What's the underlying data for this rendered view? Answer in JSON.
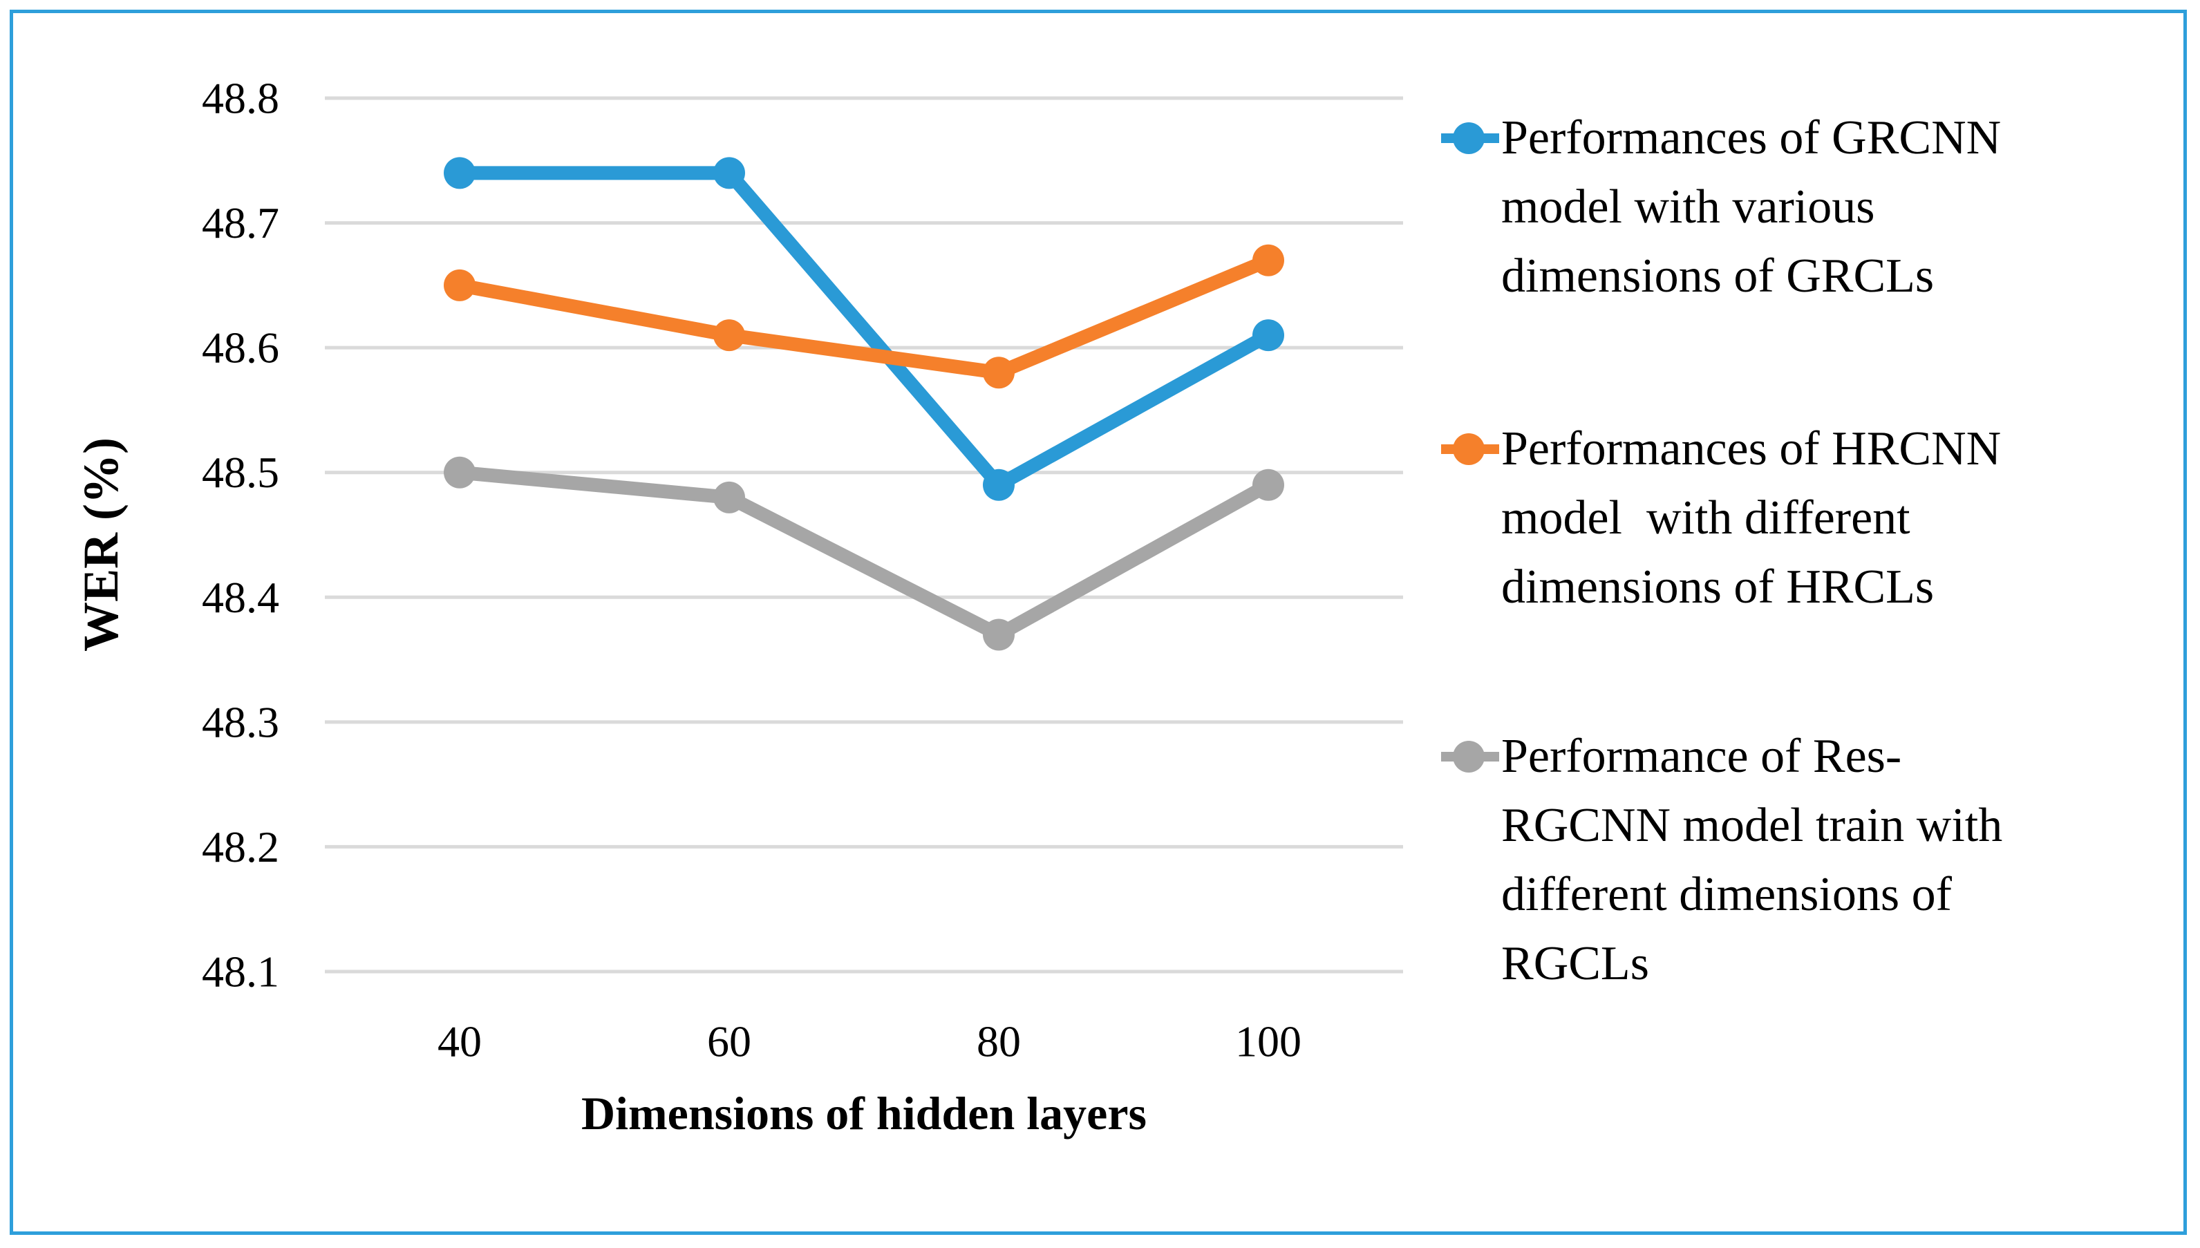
{
  "figure": {
    "background": "#FFFFFF",
    "border_color": "#2E9FDB"
  },
  "chart_data": {
    "type": "line",
    "categories": [
      40,
      60,
      80,
      100
    ],
    "series": [
      {
        "name": "Performances of GRCNN model with various dimensions of GRCLs",
        "color": "#2A9AD6",
        "values": [
          48.74,
          48.74,
          48.49,
          48.61
        ]
      },
      {
        "name": "Performances of HRCNN model  with different dimensions of HRCLs",
        "color": "#F5802B",
        "values": [
          48.65,
          48.61,
          48.58,
          48.67
        ]
      },
      {
        "name": "Performance of Res-RGCNN model train with different dimensions of RGCLs",
        "color": "#A6A6A6",
        "values": [
          48.5,
          48.48,
          48.37,
          48.49
        ]
      }
    ],
    "title": "",
    "xlabel": "Dimensions of hidden layers",
    "ylabel": "WER (%)",
    "ylim": [
      48.1,
      48.8
    ],
    "ytick_step": 0.1,
    "grid": "horizontal-only",
    "gridline_color": "#DADADA",
    "legend_position": "right"
  },
  "axes": {
    "x_title": "Dimensions of hidden layers",
    "y_title": "WER (%)",
    "x_ticks": [
      "40",
      "60",
      "80",
      "100"
    ],
    "y_ticks": [
      "48.1",
      "48.2",
      "48.3",
      "48.4",
      "48.5",
      "48.6",
      "48.7",
      "48.8"
    ],
    "tick_color": "#000000"
  },
  "legend": {
    "entries": [
      {
        "marker_color": "#2A9AD6",
        "marker_shape": "line-with-circle",
        "lines": [
          "Performances of GRCNN",
          "model with various",
          "dimensions of GRCLs"
        ]
      },
      {
        "marker_color": "#F5802B",
        "marker_shape": "line-with-circle",
        "lines": [
          "Performances of HRCNN",
          "model  with different",
          "dimensions of HRCLs"
        ]
      },
      {
        "marker_color": "#A6A6A6",
        "marker_shape": "line-with-circle",
        "lines": [
          "Performance of Res-",
          "RGCNN model train with",
          "different dimensions of",
          "RGCLs"
        ]
      }
    ]
  }
}
